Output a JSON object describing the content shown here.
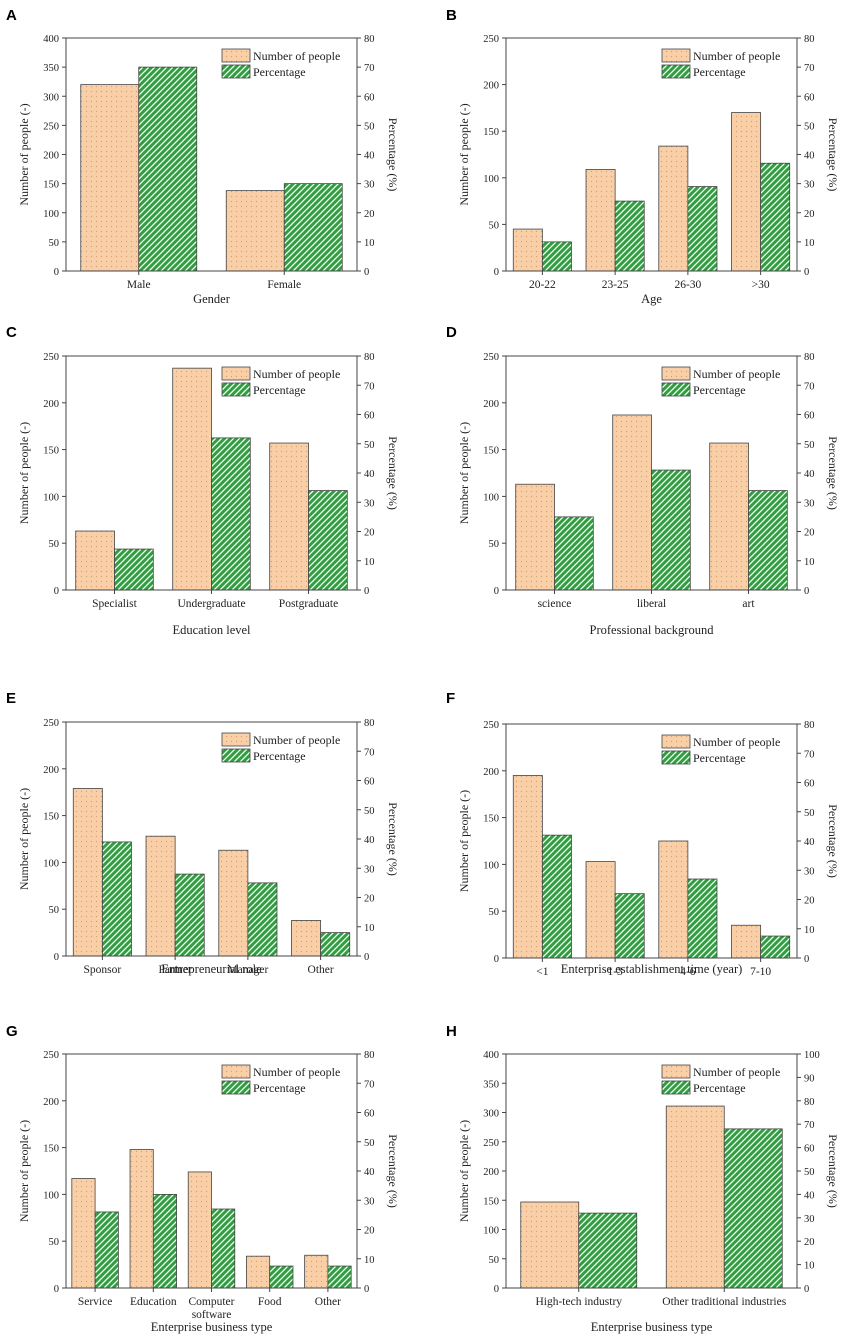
{
  "figure": {
    "legend_labels": [
      "Number of people",
      "Percentage"
    ],
    "colors": {
      "people_fill": "#f9cfa8",
      "people_dot": "#d89a6c",
      "percent_fill": "#2f9e3f",
      "percent_hatch": "#ffffff",
      "axis": "#444444"
    }
  },
  "chart_data": [
    {
      "panel": "A",
      "type": "bar",
      "categories": [
        "Male",
        "Female"
      ],
      "series": [
        {
          "name": "Number of people",
          "axis": "left",
          "values": [
            320,
            138
          ]
        },
        {
          "name": "Percentage",
          "axis": "right",
          "values": [
            70,
            30
          ]
        }
      ],
      "xlabel": "Gender",
      "ylabel": "Number of people (-)",
      "y2label": "Percentage (%)",
      "ylim": [
        0,
        400
      ],
      "yticks": [
        0,
        50,
        100,
        150,
        200,
        250,
        300,
        350,
        400
      ],
      "y2lim": [
        0,
        80
      ],
      "y2ticks": [
        0,
        10,
        20,
        30,
        40,
        50,
        60,
        70,
        80
      ],
      "legend": "top-right",
      "grid": false
    },
    {
      "panel": "B",
      "type": "bar",
      "categories": [
        "20-22",
        "23-25",
        "26-30",
        ">30"
      ],
      "series": [
        {
          "name": "Number of people",
          "axis": "left",
          "values": [
            45,
            109,
            134,
            170
          ]
        },
        {
          "name": "Percentage",
          "axis": "right",
          "values": [
            10,
            24,
            29,
            37
          ]
        }
      ],
      "xlabel": "Age",
      "ylabel": "Number of people (-)",
      "y2label": "Percentage (%)",
      "ylim": [
        0,
        250
      ],
      "yticks": [
        0,
        50,
        100,
        150,
        200,
        250
      ],
      "y2lim": [
        0,
        80
      ],
      "y2ticks": [
        0,
        10,
        20,
        30,
        40,
        50,
        60,
        70,
        80
      ],
      "legend": "top-right",
      "grid": false
    },
    {
      "panel": "C",
      "type": "bar",
      "categories": [
        "Specialist",
        "Undergraduate",
        "Postgraduate"
      ],
      "series": [
        {
          "name": "Number of people",
          "axis": "left",
          "values": [
            63,
            237,
            157
          ]
        },
        {
          "name": "Percentage",
          "axis": "right",
          "values": [
            14,
            52,
            34
          ]
        }
      ],
      "xlabel": "Education level",
      "ylabel": "Number of people (-)",
      "y2label": "Percentage (%)",
      "ylim": [
        0,
        250
      ],
      "yticks": [
        0,
        50,
        100,
        150,
        200,
        250
      ],
      "y2lim": [
        0,
        80
      ],
      "y2ticks": [
        0,
        10,
        20,
        30,
        40,
        50,
        60,
        70,
        80
      ],
      "legend": "top-right",
      "grid": false
    },
    {
      "panel": "D",
      "type": "bar",
      "categories": [
        "science",
        "liberal",
        "art"
      ],
      "series": [
        {
          "name": "Number of people",
          "axis": "left",
          "values": [
            113,
            187,
            157
          ]
        },
        {
          "name": "Percentage",
          "axis": "right",
          "values": [
            25,
            41,
            34
          ]
        }
      ],
      "xlabel": "Professional background",
      "ylabel": "Number of people (-)",
      "y2label": "Percentage (%)",
      "ylim": [
        0,
        250
      ],
      "yticks": [
        0,
        50,
        100,
        150,
        200,
        250
      ],
      "y2lim": [
        0,
        80
      ],
      "y2ticks": [
        0,
        10,
        20,
        30,
        40,
        50,
        60,
        70,
        80
      ],
      "legend": "top-right",
      "grid": false
    },
    {
      "panel": "E",
      "type": "bar",
      "categories": [
        "Sponsor",
        "Partner",
        "Manager",
        "Other"
      ],
      "series": [
        {
          "name": "Number of people",
          "axis": "left",
          "values": [
            179,
            128,
            113,
            38
          ]
        },
        {
          "name": "Percentage",
          "axis": "right",
          "values": [
            39,
            28,
            25,
            8
          ]
        }
      ],
      "xlabel": "Entrepreneurial role",
      "ylabel": "Number of people (-)",
      "y2label": "Percentage (%)",
      "ylim": [
        0,
        250
      ],
      "yticks": [
        0,
        50,
        100,
        150,
        200,
        250
      ],
      "y2lim": [
        0,
        80
      ],
      "y2ticks": [
        0,
        10,
        20,
        30,
        40,
        50,
        60,
        70,
        80
      ],
      "legend": "top-right",
      "grid": false
    },
    {
      "panel": "F",
      "type": "bar",
      "categories": [
        "<1",
        "1-3",
        "4-6",
        "7-10"
      ],
      "series": [
        {
          "name": "Number of people",
          "axis": "left",
          "values": [
            195,
            103,
            125,
            35
          ]
        },
        {
          "name": "Percentage",
          "axis": "right",
          "values": [
            42,
            22,
            27,
            7.5
          ]
        }
      ],
      "xlabel": "Enterprise establishment time (year)",
      "ylabel": "Number of people (-)",
      "y2label": "Percentage (%)",
      "ylim": [
        0,
        250
      ],
      "yticks": [
        0,
        50,
        100,
        150,
        200,
        250
      ],
      "y2lim": [
        0,
        80
      ],
      "y2ticks": [
        0,
        10,
        20,
        30,
        40,
        50,
        60,
        70,
        80
      ],
      "legend": "top-right",
      "grid": false
    },
    {
      "panel": "G",
      "type": "bar",
      "categories": [
        "Service",
        "Education",
        "Computer software",
        "Food",
        "Other"
      ],
      "series": [
        {
          "name": "Number of people",
          "axis": "left",
          "values": [
            117,
            148,
            124,
            34,
            35
          ]
        },
        {
          "name": "Percentage",
          "axis": "right",
          "values": [
            26,
            32,
            27,
            7.5,
            7.5
          ]
        }
      ],
      "xlabel": "Enterprise business type",
      "ylabel": "Number of people (-)",
      "y2label": "Percentage (%)",
      "ylim": [
        0,
        250
      ],
      "yticks": [
        0,
        50,
        100,
        150,
        200,
        250
      ],
      "y2lim": [
        0,
        80
      ],
      "y2ticks": [
        0,
        10,
        20,
        30,
        40,
        50,
        60,
        70,
        80
      ],
      "legend": "top-right",
      "grid": false
    },
    {
      "panel": "H",
      "type": "bar",
      "categories": [
        "High-tech industry",
        "Other traditional industries"
      ],
      "series": [
        {
          "name": "Number of people",
          "axis": "left",
          "values": [
            147,
            311
          ]
        },
        {
          "name": "Percentage",
          "axis": "right",
          "values": [
            32,
            68
          ]
        }
      ],
      "xlabel": "Enterprise business type",
      "ylabel": "Number of people (-)",
      "y2label": "Percentage (%)",
      "ylim": [
        0,
        400
      ],
      "yticks": [
        0,
        50,
        100,
        150,
        200,
        250,
        300,
        350,
        400
      ],
      "y2lim": [
        0,
        100
      ],
      "y2ticks": [
        0,
        10,
        20,
        30,
        40,
        50,
        60,
        70,
        80,
        90,
        100
      ],
      "legend": "top-right",
      "grid": false
    }
  ]
}
